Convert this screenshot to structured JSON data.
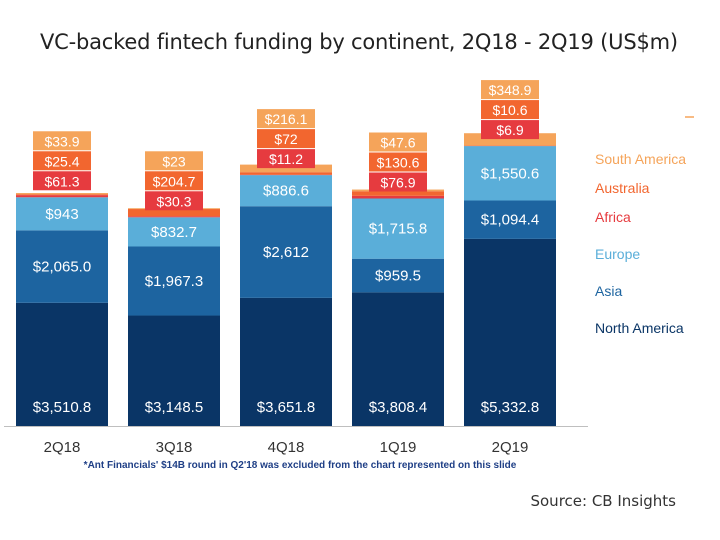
{
  "title": "VC-backed fintech funding by continent, 2Q18 - 2Q19 (US$m)",
  "footnote": "*Ant Financials' $14B round in Q2'18 was excluded from the chart represented on this slide",
  "source": "Source: CB Insights",
  "colors": {
    "north_america": "#0a3566",
    "asia": "#1d64a0",
    "europe": "#5aaed9",
    "africa": "#e63b3f",
    "australia": "#f2662f",
    "south_america": "#f5a45a"
  },
  "chart_data": {
    "type": "bar",
    "stacked": true,
    "categories": [
      "2Q18",
      "3Q18",
      "4Q18",
      "1Q19",
      "2Q19"
    ],
    "series": [
      {
        "name": "North America",
        "key": "north_america",
        "values": [
          3510.8,
          3148.5,
          3651.8,
          3808.4,
          5332.8
        ],
        "labels": [
          "$3,510.8",
          "$3,148.5",
          "$3,651.8",
          "$3,808.4",
          "$5,332.8"
        ]
      },
      {
        "name": "Asia",
        "key": "asia",
        "values": [
          2065.0,
          1967.3,
          2612,
          959.5,
          1094.4
        ],
        "labels": [
          "$2,065.0",
          "$1,967.3",
          "$2,612",
          "$959.5",
          "$1,094.4"
        ]
      },
      {
        "name": "Europe",
        "key": "europe",
        "values": [
          943,
          832.7,
          886.6,
          1715.8,
          1550.6
        ],
        "labels": [
          "$943",
          "$832.7",
          "$886.6",
          "$1,715.8",
          "$1,550.6"
        ]
      },
      {
        "name": "Africa",
        "key": "africa",
        "values": [
          61.3,
          30.3,
          11.2,
          76.9,
          6.9
        ],
        "labels": [
          "$61.3",
          "$30.3",
          "$11.2",
          "$76.9",
          "$6.9"
        ]
      },
      {
        "name": "Australia",
        "key": "australia",
        "values": [
          25.4,
          204.7,
          72,
          130.6,
          10.6
        ],
        "labels": [
          "$25.4",
          "$204.7",
          "$72",
          "$130.6",
          "$10.6"
        ]
      },
      {
        "name": "South America",
        "key": "south_america",
        "values": [
          33.9,
          23,
          216.1,
          47.6,
          348.9
        ],
        "labels": [
          "$33.9",
          "$23",
          "$216.1",
          "$47.6",
          "$348.9"
        ]
      }
    ],
    "legend": [
      "South America",
      "Australia",
      "Africa",
      "Europe",
      "Asia",
      "North America"
    ],
    "legend_position": "right",
    "grid": false
  }
}
